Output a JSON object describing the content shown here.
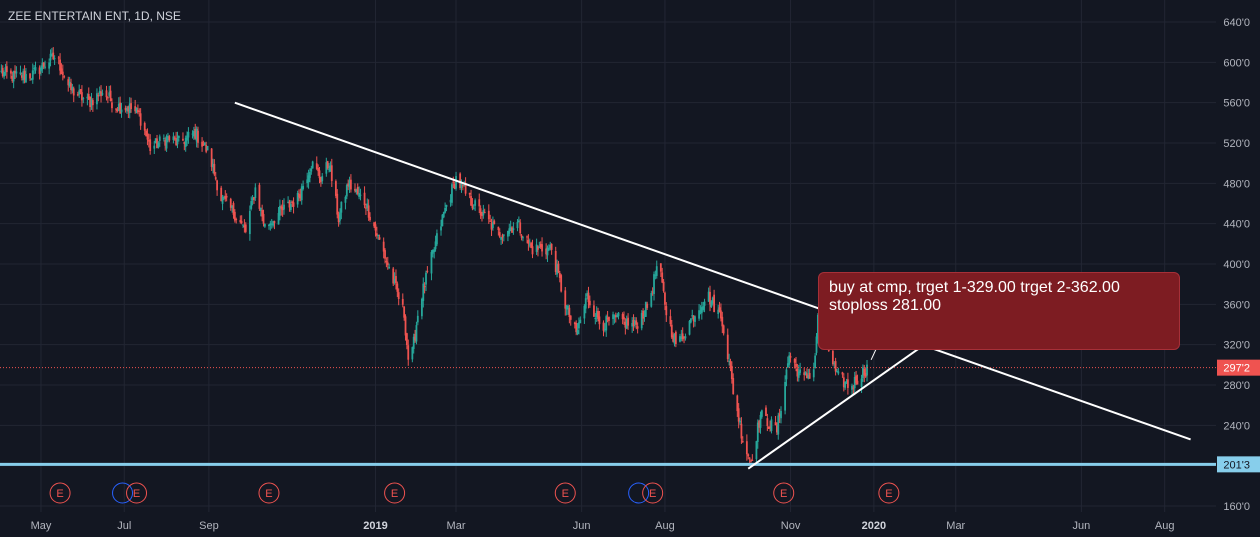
{
  "header": {
    "title": "ZEE ENTERTAIN ENT, 1D, NSE"
  },
  "note": {
    "line1": "buy at cmp, trget 1-329.00 trget 2-362.00",
    "line2": "stoploss 281.00"
  },
  "colors": {
    "background": "#131722",
    "grid": "#222633",
    "text": "#b2b5be",
    "up": "#26a69a",
    "down": "#ef5350",
    "trendline": "#ffffff",
    "support": "#87ceeb",
    "price_line": "#ef5350",
    "event": "#ef5350",
    "event_blue": "#2962ff",
    "callout": "#7d1c22"
  },
  "chart_data": {
    "type": "candlestick",
    "symbol": "ZEE ENTERTAIN ENT",
    "interval": "1D",
    "exchange": "NSE",
    "ylim": [
      160,
      650
    ],
    "y_ticks": [
      {
        "value": 160,
        "label": "160'0"
      },
      {
        "value": 200,
        "label": "200'0"
      },
      {
        "value": 240,
        "label": "240'0"
      },
      {
        "value": 280,
        "label": "280'0"
      },
      {
        "value": 320,
        "label": "320'0"
      },
      {
        "value": 360,
        "label": "360'0"
      },
      {
        "value": 400,
        "label": "400'0"
      },
      {
        "value": 440,
        "label": "440'0"
      },
      {
        "value": 480,
        "label": "480'0"
      },
      {
        "value": 520,
        "label": "520'0"
      },
      {
        "value": 560,
        "label": "560'0"
      },
      {
        "value": 600,
        "label": "600'0"
      },
      {
        "value": 640,
        "label": "640'0"
      }
    ],
    "x_ticks": [
      {
        "date": "2018-05-01",
        "label": "May",
        "bold": false
      },
      {
        "date": "2018-07-01",
        "label": "Jul",
        "bold": false
      },
      {
        "date": "2018-09-01",
        "label": "Sep",
        "bold": false
      },
      {
        "date": "2019-01-01",
        "label": "2019",
        "bold": true
      },
      {
        "date": "2019-03-01",
        "label": "Mar",
        "bold": false
      },
      {
        "date": "2019-06-01",
        "label": "Jun",
        "bold": false
      },
      {
        "date": "2019-08-01",
        "label": "Aug",
        "bold": false
      },
      {
        "date": "2019-11-01",
        "label": "Nov",
        "bold": false
      },
      {
        "date": "2020-01-01",
        "label": "2020",
        "bold": true
      },
      {
        "date": "2020-03-01",
        "label": "Mar",
        "bold": false
      },
      {
        "date": "2020-06-01",
        "label": "Jun",
        "bold": false
      },
      {
        "date": "2020-08-01",
        "label": "Aug",
        "bold": false
      }
    ],
    "price_path": [
      [
        "2018-04-01",
        590
      ],
      [
        "2018-04-10",
        586
      ],
      [
        "2018-04-25",
        588
      ],
      [
        "2018-05-05",
        600
      ],
      [
        "2018-05-12",
        606
      ],
      [
        "2018-05-22",
        574
      ],
      [
        "2018-06-05",
        560
      ],
      [
        "2018-06-15",
        571
      ],
      [
        "2018-06-25",
        557
      ],
      [
        "2018-07-05",
        555
      ],
      [
        "2018-07-12",
        548
      ],
      [
        "2018-07-20",
        515
      ],
      [
        "2018-08-01",
        525
      ],
      [
        "2018-08-10",
        520
      ],
      [
        "2018-08-22",
        530
      ],
      [
        "2018-09-01",
        510
      ],
      [
        "2018-09-10",
        465
      ],
      [
        "2018-09-20",
        450
      ],
      [
        "2018-09-28",
        432
      ],
      [
        "2018-10-05",
        475
      ],
      [
        "2018-10-12",
        437
      ],
      [
        "2018-10-22",
        450
      ],
      [
        "2018-11-05",
        465
      ],
      [
        "2018-11-15",
        500
      ],
      [
        "2018-11-22",
        485
      ],
      [
        "2018-11-28",
        500
      ],
      [
        "2018-12-05",
        445
      ],
      [
        "2018-12-12",
        480
      ],
      [
        "2018-12-25",
        460
      ],
      [
        "2019-01-10",
        400
      ],
      [
        "2019-01-22",
        350
      ],
      [
        "2019-01-26",
        292
      ],
      [
        "2019-02-02",
        360
      ],
      [
        "2019-02-10",
        400
      ],
      [
        "2019-02-20",
        450
      ],
      [
        "2019-03-01",
        485
      ],
      [
        "2019-03-10",
        465
      ],
      [
        "2019-03-20",
        450
      ],
      [
        "2019-04-01",
        430
      ],
      [
        "2019-04-15",
        440
      ],
      [
        "2019-04-25",
        415
      ],
      [
        "2019-05-10",
        415
      ],
      [
        "2019-05-20",
        360
      ],
      [
        "2019-05-28",
        330
      ],
      [
        "2019-06-05",
        368
      ],
      [
        "2019-06-15",
        340
      ],
      [
        "2019-06-28",
        345
      ],
      [
        "2019-07-10",
        338
      ],
      [
        "2019-07-20",
        360
      ],
      [
        "2019-07-27",
        402
      ],
      [
        "2019-08-03",
        345
      ],
      [
        "2019-08-10",
        318
      ],
      [
        "2019-08-20",
        345
      ],
      [
        "2019-09-01",
        370
      ],
      [
        "2019-09-12",
        345
      ],
      [
        "2019-09-20",
        275
      ],
      [
        "2019-09-28",
        220
      ],
      [
        "2019-10-03",
        205
      ],
      [
        "2019-10-10",
        250
      ],
      [
        "2019-10-22",
        235
      ],
      [
        "2019-10-31",
        310
      ],
      [
        "2019-11-10",
        285
      ],
      [
        "2019-11-18",
        295
      ],
      [
        "2019-11-22",
        362
      ],
      [
        "2019-11-28",
        320
      ],
      [
        "2019-12-05",
        288
      ],
      [
        "2019-12-15",
        278
      ],
      [
        "2019-12-22",
        290
      ],
      [
        "2019-12-28",
        298
      ]
    ],
    "last_price": {
      "value": 297.2,
      "label": "297'2"
    },
    "support_level": {
      "value": 201.3,
      "label": "201'3"
    },
    "trendlines": [
      {
        "name": "resistance",
        "points": [
          [
            "2018-09-20",
            560
          ],
          [
            "2020-08-20",
            226
          ]
        ]
      },
      {
        "name": "support",
        "points": [
          [
            "2019-10-01",
            197
          ],
          [
            "2020-02-28",
            340
          ]
        ]
      }
    ],
    "target_arrow": {
      "from": [
        "2019-12-30",
        305
      ],
      "to": [
        "2020-01-20",
        366
      ]
    },
    "events": [
      {
        "date": "2018-05-15",
        "label": "E"
      },
      {
        "date": "2018-07-10",
        "label": "E",
        "dividend": true
      },
      {
        "date": "2018-10-15",
        "label": "E"
      },
      {
        "date": "2019-01-15",
        "label": "E"
      },
      {
        "date": "2019-05-20",
        "label": "E"
      },
      {
        "date": "2019-07-23",
        "label": "E",
        "dividend": true
      },
      {
        "date": "2019-10-27",
        "label": "E"
      },
      {
        "date": "2020-01-12",
        "label": "E"
      }
    ]
  }
}
